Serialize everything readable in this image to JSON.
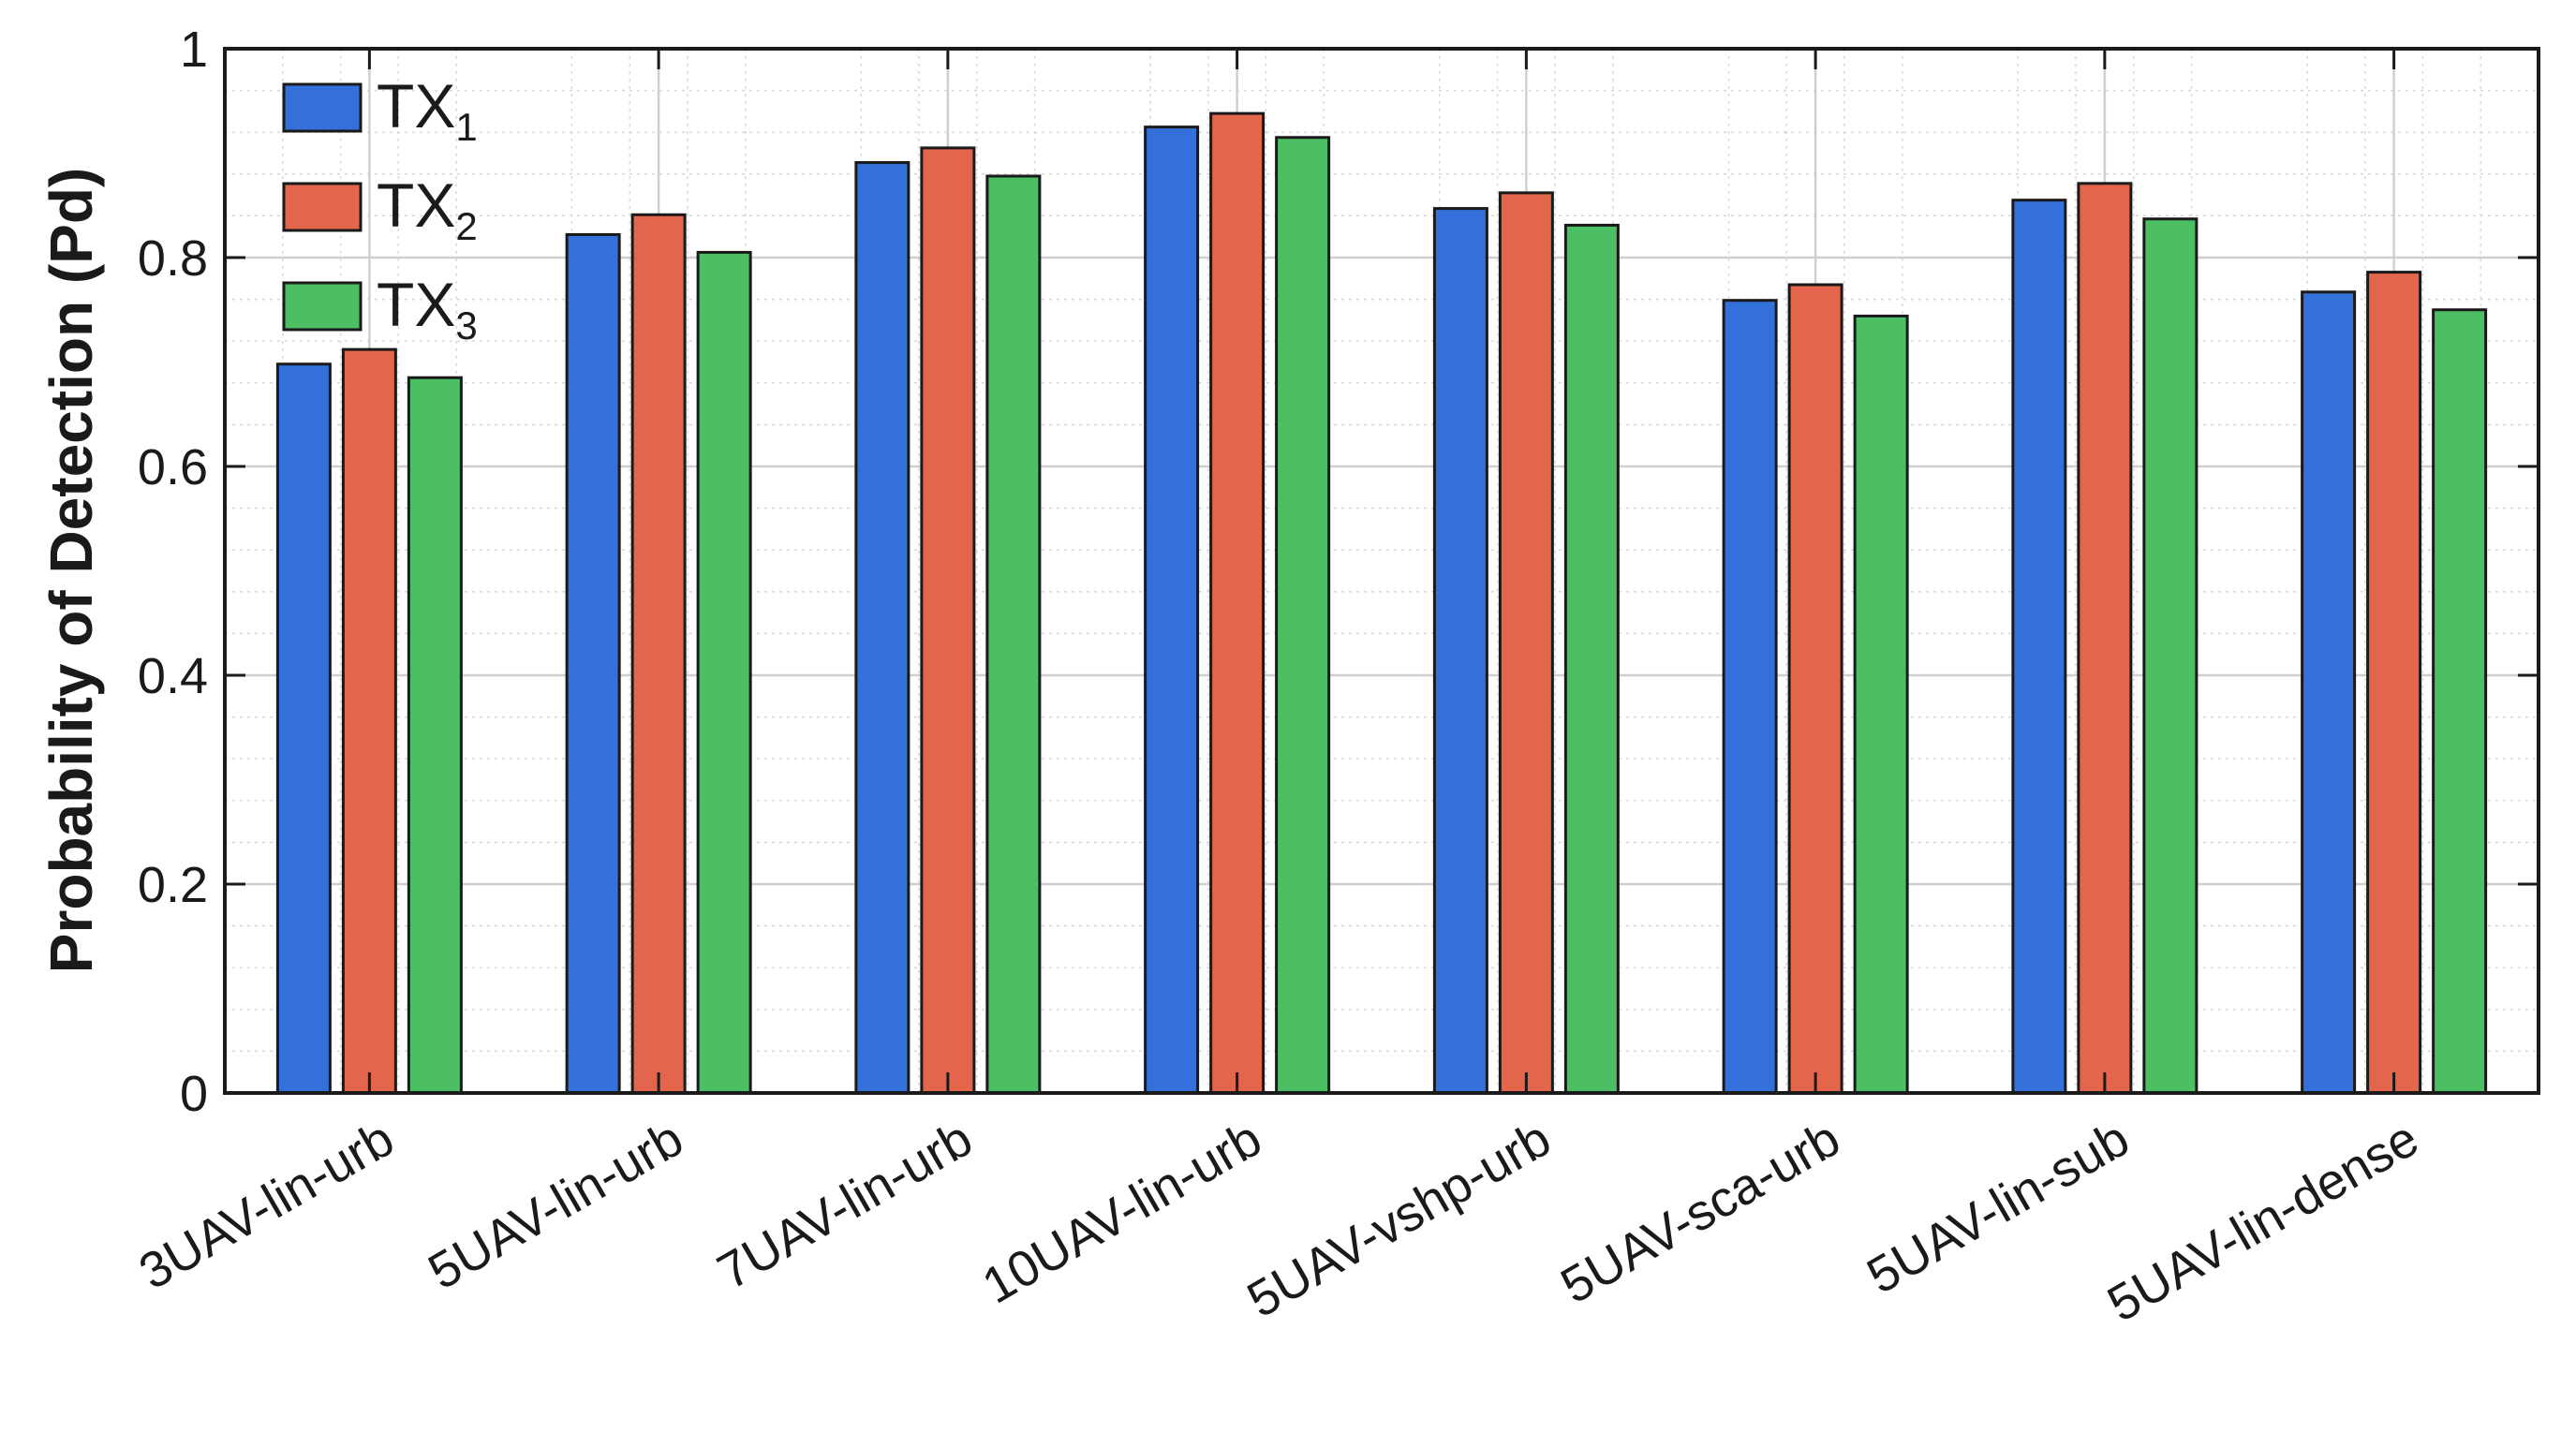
{
  "chart_data": {
    "type": "bar",
    "ylabel": "Probability of Detection (Pd)",
    "xlabel": "",
    "ylim": [
      0,
      1
    ],
    "yticks": [
      0,
      0.2,
      0.4,
      0.6,
      0.8,
      1
    ],
    "ytick_labels": [
      "0",
      "0.2",
      "0.4",
      "0.6",
      "0.8",
      "1"
    ],
    "grid": true,
    "minor_grid": true,
    "legend_position": "top-left",
    "categories": [
      "3UAV-lin-urb",
      "5UAV-lin-urb",
      "7UAV-lin-urb",
      "10UAV-lin-urb",
      "5UAV-vshp-urb",
      "5UAV-sca-urb",
      "5UAV-lin-sub",
      "5UAV-lin-dense"
    ],
    "series": [
      {
        "name": "TX",
        "subscript": "1",
        "color": "#3370d9",
        "values": [
          0.698,
          0.822,
          0.891,
          0.925,
          0.847,
          0.759,
          0.855,
          0.767
        ]
      },
      {
        "name": "TX",
        "subscript": "2",
        "color": "#e3654b",
        "values": [
          0.712,
          0.841,
          0.905,
          0.938,
          0.862,
          0.774,
          0.871,
          0.786
        ]
      },
      {
        "name": "TX",
        "subscript": "3",
        "color": "#4cbf65",
        "values": [
          0.685,
          0.805,
          0.878,
          0.915,
          0.831,
          0.744,
          0.837,
          0.75
        ]
      }
    ]
  }
}
